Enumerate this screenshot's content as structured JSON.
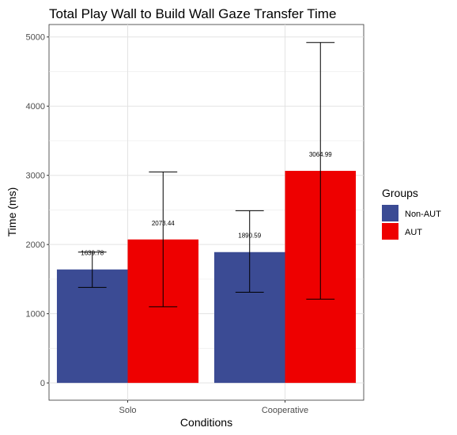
{
  "chart_data": {
    "type": "bar",
    "title": "Total Play Wall to Build Wall Gaze Transfer Time",
    "xlabel": "Conditions",
    "ylabel": "Time (ms)",
    "categories": [
      "Solo",
      "Cooperative"
    ],
    "ylim": [
      -250,
      5180
    ],
    "yticks": [
      0,
      1000,
      2000,
      3000,
      4000,
      5000
    ],
    "grid": true,
    "legend": {
      "title": "Groups",
      "position": "right"
    },
    "series": [
      {
        "name": "Non-AUT",
        "color": "#3b4b94",
        "values": [
          1639.78,
          1890.59
        ],
        "labels": [
          "1639.78",
          "1890.59"
        ],
        "error_low": [
          1380,
          1310
        ],
        "error_high": [
          1890,
          2490
        ]
      },
      {
        "name": "AUT",
        "color": "#ee0000",
        "values": [
          2073.44,
          3064.99
        ],
        "labels": [
          "2073.44",
          "3064.99"
        ],
        "error_low": [
          1100,
          1210
        ],
        "error_high": [
          3050,
          4920
        ]
      }
    ]
  }
}
